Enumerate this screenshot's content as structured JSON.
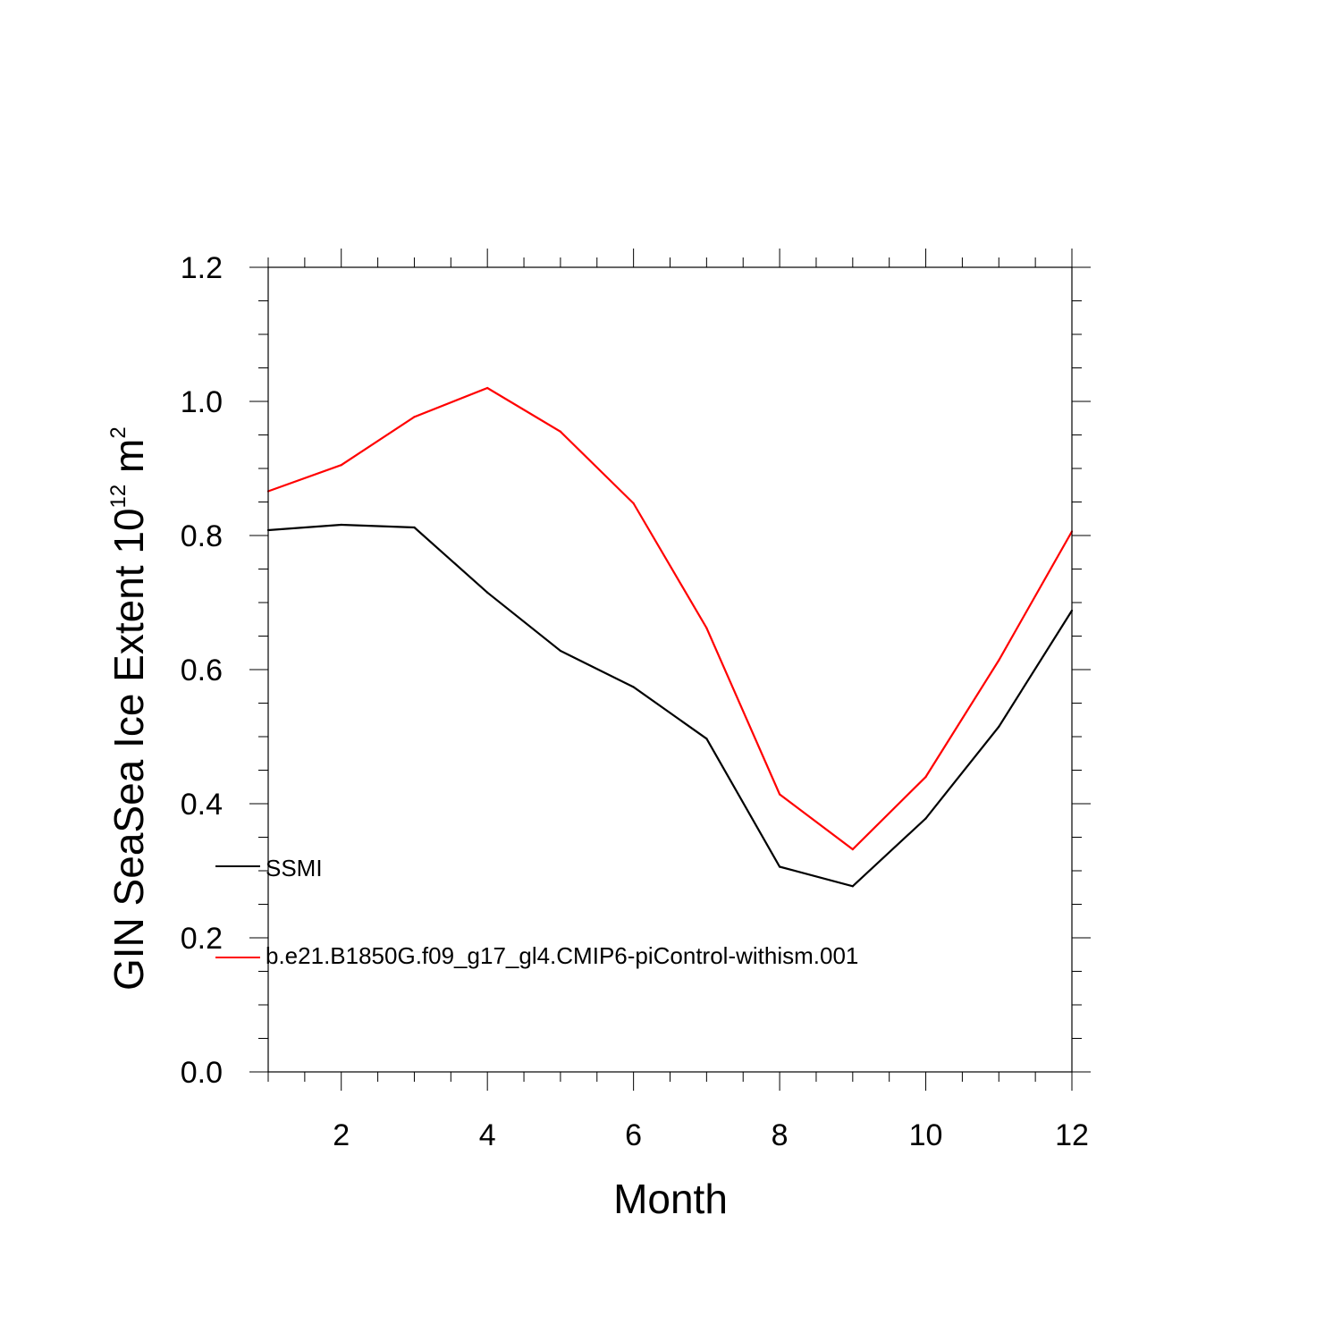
{
  "chart_data": {
    "type": "line",
    "title": "",
    "xlabel": "Month",
    "ylabel": {
      "prefix": "GIN SeaSea Ice Extent 10",
      "exponent1": "12",
      "unit": " m",
      "exponent2": "2"
    },
    "xlim": [
      1,
      12
    ],
    "ylim": [
      0.0,
      1.2
    ],
    "x_major_ticks": [
      2,
      4,
      6,
      8,
      10,
      12
    ],
    "x_minor_step": 0.5,
    "y_major_ticks": [
      "0.0",
      "0.2",
      "0.4",
      "0.6",
      "0.8",
      "1.0",
      "1.2"
    ],
    "y_minor_step": 0.05,
    "grid": false,
    "legend_placement": "left-inside",
    "x": [
      1,
      2,
      3,
      4,
      5,
      6,
      7,
      8,
      9,
      10,
      11,
      12
    ],
    "series": [
      {
        "name": "SSMI",
        "color": "#000000",
        "values": [
          0.808,
          0.816,
          0.812,
          0.715,
          0.628,
          0.574,
          0.497,
          0.306,
          0.277,
          0.378,
          0.515,
          0.688
        ]
      },
      {
        "name": "b.e21.B1850G.f09_g17_gl4.CMIP6-piControl-withism.001",
        "color": "#ff0000",
        "values": [
          0.866,
          0.905,
          0.977,
          1.02,
          0.955,
          0.848,
          0.662,
          0.414,
          0.332,
          0.44,
          0.614,
          0.806
        ]
      }
    ]
  }
}
